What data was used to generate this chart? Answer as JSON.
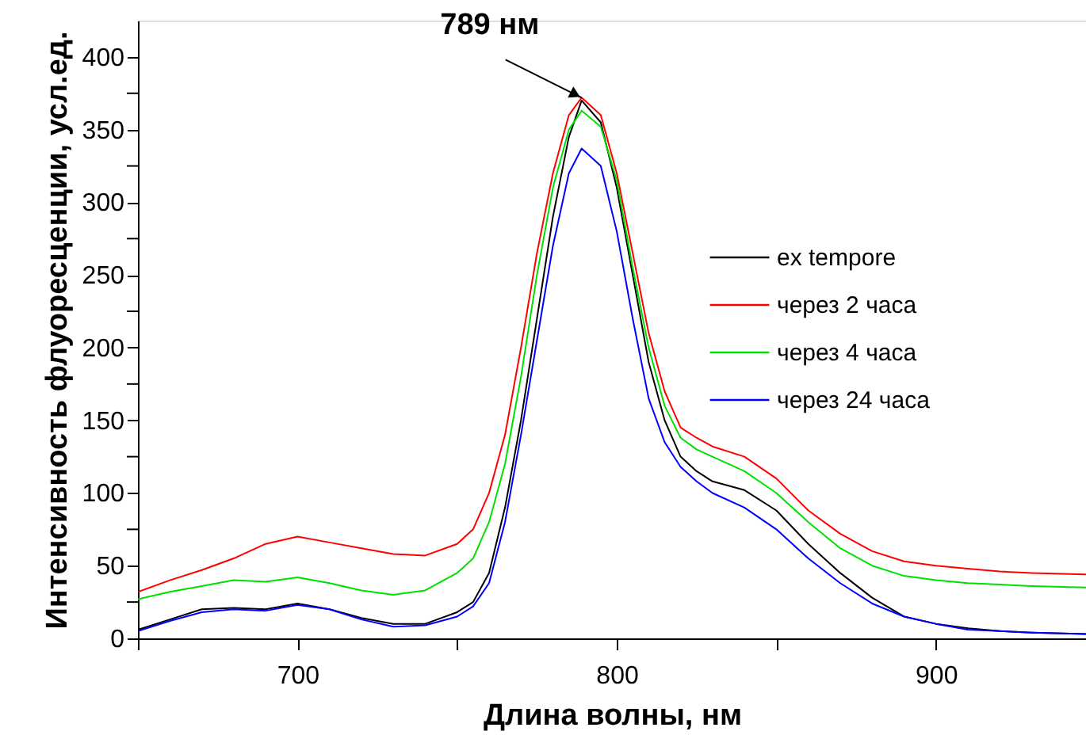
{
  "chart_data": {
    "type": "line",
    "xlabel": "Длина волны, нм",
    "ylabel": "Интенсивность флуоресценции, усл.ед.",
    "x": [
      650,
      660,
      670,
      680,
      690,
      700,
      710,
      720,
      730,
      740,
      750,
      755,
      760,
      765,
      770,
      775,
      780,
      785,
      789,
      795,
      800,
      805,
      810,
      815,
      820,
      825,
      830,
      840,
      850,
      860,
      870,
      880,
      890,
      900,
      910,
      920,
      930,
      947
    ],
    "series": [
      {
        "name": "ex tempore",
        "color": "#000000",
        "values": [
          6,
          13,
          20,
          21,
          20,
          24,
          20,
          14,
          10,
          10,
          18,
          25,
          45,
          90,
          150,
          220,
          290,
          345,
          370,
          355,
          310,
          250,
          190,
          150,
          125,
          115,
          108,
          102,
          88,
          65,
          45,
          28,
          15,
          10,
          7,
          5,
          4,
          3
        ]
      },
      {
        "name": "через 2 часа",
        "color": "#ff0000",
        "values": [
          32,
          40,
          47,
          55,
          65,
          70,
          66,
          62,
          58,
          57,
          65,
          75,
          100,
          140,
          200,
          265,
          320,
          360,
          372,
          360,
          320,
          265,
          210,
          170,
          145,
          138,
          132,
          125,
          110,
          88,
          72,
          60,
          53,
          50,
          48,
          46,
          45,
          44
        ]
      },
      {
        "name": "через 4 часа",
        "color": "#00e000",
        "values": [
          27,
          32,
          36,
          40,
          39,
          42,
          38,
          33,
          30,
          33,
          45,
          55,
          80,
          120,
          180,
          250,
          310,
          350,
          363,
          352,
          315,
          255,
          200,
          160,
          138,
          130,
          125,
          115,
          100,
          80,
          62,
          50,
          43,
          40,
          38,
          37,
          36,
          35
        ]
      },
      {
        "name": "через 24 часа",
        "color": "#0000ff",
        "values": [
          5,
          12,
          18,
          20,
          19,
          23,
          20,
          13,
          8,
          9,
          15,
          22,
          38,
          80,
          140,
          205,
          270,
          320,
          337,
          325,
          280,
          220,
          165,
          135,
          118,
          108,
          100,
          90,
          75,
          55,
          38,
          24,
          15,
          10,
          6,
          5,
          4,
          3
        ]
      }
    ],
    "xlim": [
      650,
      947
    ],
    "ylim": [
      0,
      425
    ],
    "xticks": [
      {
        "value": 650,
        "label": null
      },
      700,
      {
        "value": 750,
        "label": null
      },
      800,
      {
        "value": 850,
        "label": null
      },
      900
    ],
    "yticks": [
      0,
      {
        "value": 25,
        "label": null
      },
      50,
      {
        "value": 75,
        "label": null
      },
      100,
      {
        "value": 125,
        "label": null
      },
      150,
      {
        "value": 175,
        "label": null
      },
      200,
      {
        "value": 225,
        "label": null
      },
      250,
      {
        "value": 275,
        "label": null
      },
      300,
      {
        "value": 325,
        "label": null
      },
      350,
      {
        "value": 375,
        "label": null
      },
      400
    ],
    "annotations": [
      {
        "text": "789 нм",
        "x": 789,
        "y": 372
      }
    ],
    "grid": false,
    "legend": "right",
    "marker": "none",
    "line_style": "solid"
  }
}
